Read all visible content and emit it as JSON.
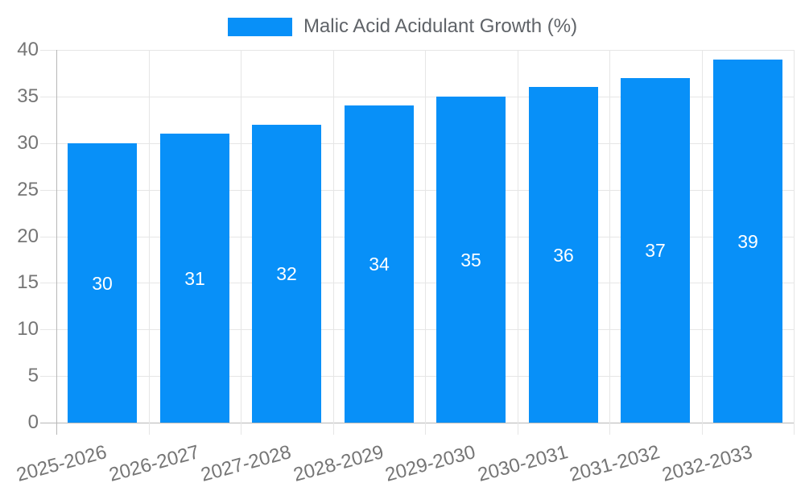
{
  "colors": {
    "bar": "#0890f8",
    "grid": "#e6e6e6",
    "axis": "#b7b7b7",
    "tick_text": "#757575",
    "legend_text": "#5f6368",
    "value_text": "#ffffff",
    "background": "#ffffff"
  },
  "legend": {
    "label": "Malic Acid Acidulant Growth (%)"
  },
  "chart_data": {
    "type": "bar",
    "title": "Malic Acid Acidulant Growth (%)",
    "categories": [
      "2025-2026",
      "2026-2027",
      "2027-2028",
      "2028-2029",
      "2029-2030",
      "2030-2031",
      "2031-2032",
      "2032-2033"
    ],
    "values": [
      30,
      31,
      32,
      34,
      35,
      36,
      37,
      39
    ],
    "value_labels": [
      "30",
      "31",
      "32",
      "34",
      "35",
      "36",
      "37",
      "39"
    ],
    "value_label_position": "inside-middle",
    "xlabel": "",
    "ylabel": "",
    "ylim": [
      0,
      40
    ],
    "yticks": [
      0,
      5,
      10,
      15,
      20,
      25,
      30,
      35,
      40
    ],
    "grid": true,
    "legend_position": "top-center",
    "xtick_rotation_deg": -15
  }
}
